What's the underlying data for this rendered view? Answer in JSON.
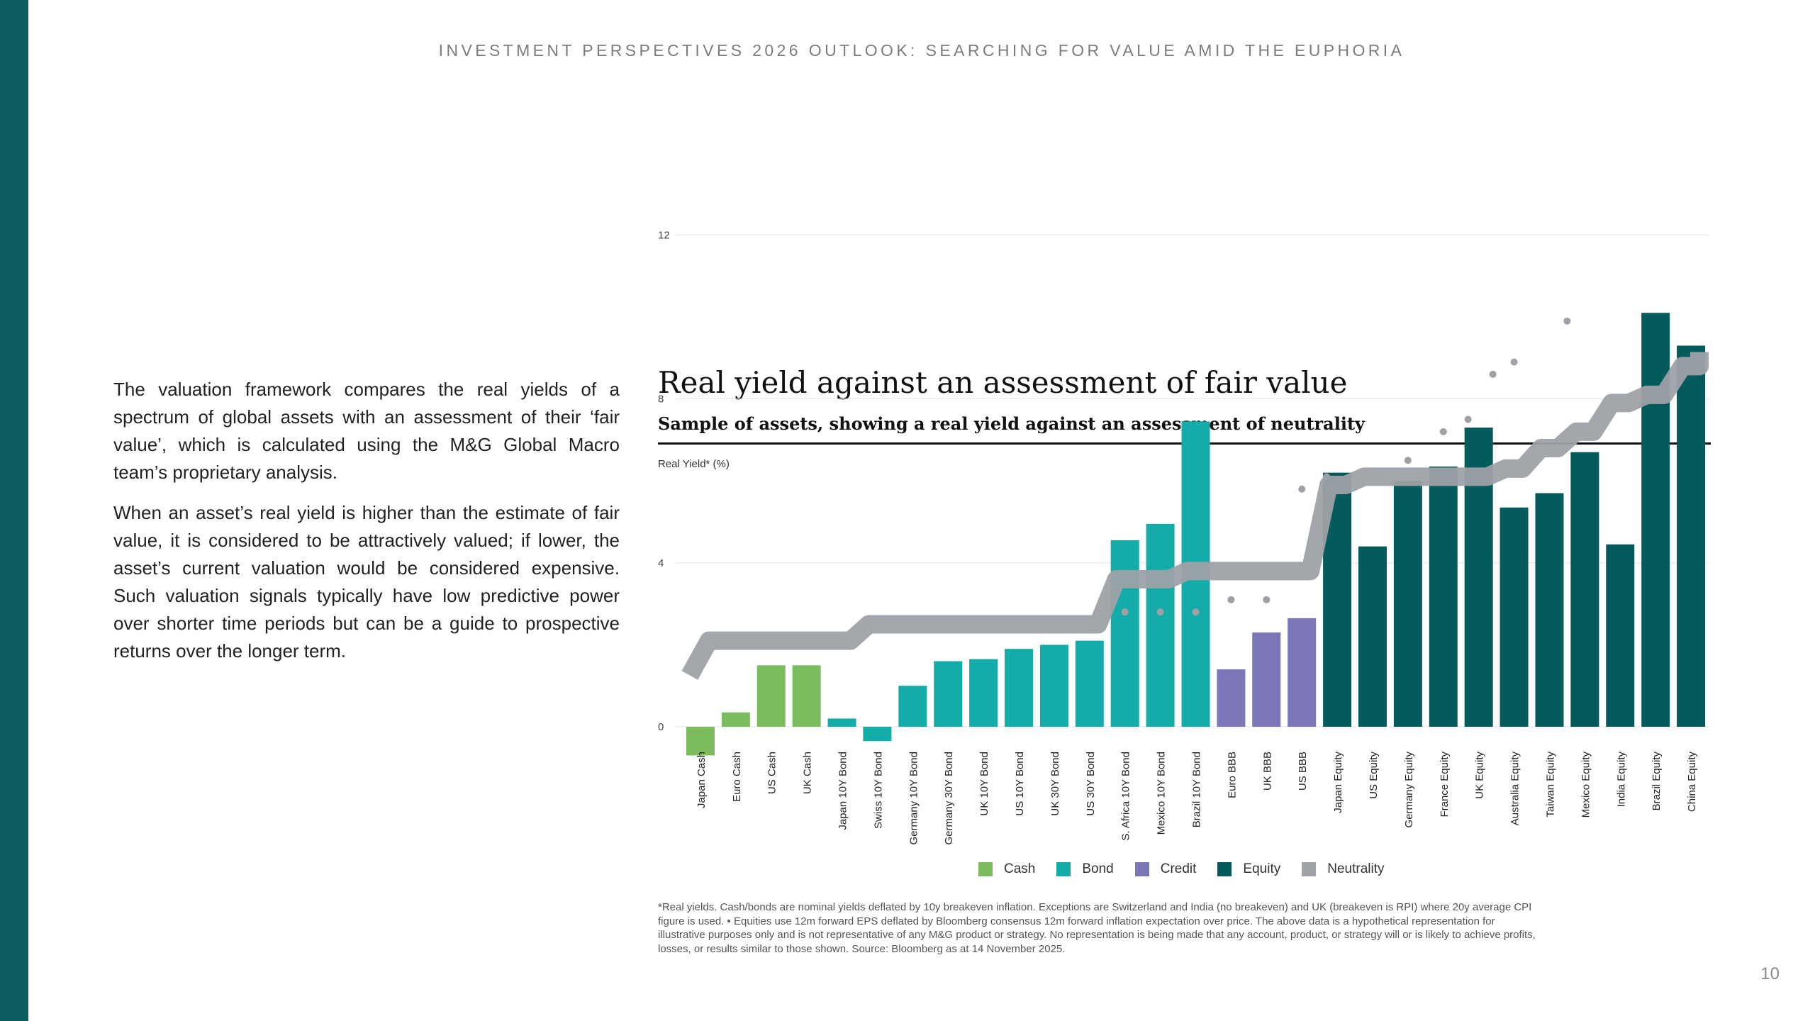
{
  "header": {
    "title": "INVESTMENT PERSPECTIVES 2026 OUTLOOK: SEARCHING FOR VALUE AMID THE EUPHORIA"
  },
  "intro": {
    "p1": "The valuation framework compares the real yields of a spectrum of global assets with an assessment of their ‘fair value’, which is calculated using the M&G Global Macro team’s proprietary analysis.",
    "p2": "When an asset’s real yield is higher than the estimate of fair value, it is considered to be attractively valued; if lower, the asset’s current valuation would be considered expensive. Such valuation signals typically have low predictive power over shorter time periods but can be a guide to prospective returns over the longer term."
  },
  "colors": {
    "Cash": "#7cbb5e",
    "Bond": "#13aca9",
    "Credit": "#7a76b8",
    "Equity": "#055b5c",
    "Neutrality": "#9ea1a5"
  },
  "chart_data": {
    "type": "bar",
    "title": "Real yield against an assessment of fair value",
    "subtitle": "Sample of assets, showing a real yield against an assessment of neutrality",
    "ylabel": "Real Yield* (%)",
    "ylim": [
      0,
      12
    ],
    "yticks": [
      0,
      4,
      8,
      12
    ],
    "categories": [
      "Japan Cash",
      "Euro Cash",
      "US Cash",
      "UK Cash",
      "Japan 10Y Bond",
      "Swiss 10Y Bond",
      "Germany 10Y Bond",
      "Germany 30Y Bond",
      "UK 10Y Bond",
      "US 10Y Bond",
      "UK 30Y Bond",
      "US 30Y Bond",
      "S. Africa 10Y Bond",
      "Mexico 10Y Bond",
      "Brazil 10Y Bond",
      "Euro BBB",
      "UK BBB",
      "US BBB",
      "Japan Equity",
      "US Equity",
      "Germany Equity",
      "France Equity",
      "UK Equity",
      "Australia Equity",
      "Taiwan Equity",
      "Mexico Equity",
      "India Equity",
      "Brazil Equity",
      "China Equity"
    ],
    "groups": [
      "Cash",
      "Cash",
      "Cash",
      "Cash",
      "Bond",
      "Bond",
      "Bond",
      "Bond",
      "Bond",
      "Bond",
      "Bond",
      "Bond",
      "Bond",
      "Bond",
      "Bond",
      "Credit",
      "Credit",
      "Credit",
      "Equity",
      "Equity",
      "Equity",
      "Equity",
      "Equity",
      "Equity",
      "Equity",
      "Equity",
      "Equity",
      "Equity",
      "Equity"
    ],
    "values": [
      -0.7,
      0.35,
      1.5,
      1.5,
      0.2,
      -0.35,
      1.0,
      1.6,
      1.65,
      1.9,
      2.0,
      2.1,
      4.55,
      4.95,
      7.45,
      1.4,
      2.3,
      2.65,
      6.2,
      4.4,
      6.0,
      6.35,
      7.3,
      5.35,
      5.7,
      6.7,
      4.45,
      10.1,
      9.3
    ],
    "neutrality": [
      1.6,
      2.1,
      2.1,
      2.1,
      2.1,
      2.5,
      2.5,
      2.5,
      2.5,
      2.5,
      2.5,
      2.5,
      3.6,
      3.6,
      3.8,
      3.8,
      3.8,
      3.8,
      5.9,
      6.1,
      6.1,
      6.1,
      6.1,
      6.3,
      6.8,
      7.2,
      7.9,
      8.1,
      8.8
    ],
    "dots": [
      {
        "i": 12,
        "v": 2.8
      },
      {
        "i": 13,
        "v": 2.8
      },
      {
        "i": 14,
        "v": 2.8
      },
      {
        "i": 15,
        "v": 3.1
      },
      {
        "i": 16,
        "v": 3.1
      },
      {
        "i": 17,
        "v": 5.8
      },
      {
        "i": 17.7,
        "v": 6.1
      },
      {
        "i": 20,
        "v": 6.5
      },
      {
        "i": 21,
        "v": 7.2
      },
      {
        "i": 21.7,
        "v": 7.5
      },
      {
        "i": 22.4,
        "v": 8.6
      },
      {
        "i": 23,
        "v": 8.9
      },
      {
        "i": 24.5,
        "v": 9.9
      }
    ],
    "legend": [
      "Cash",
      "Bond",
      "Credit",
      "Equity",
      "Neutrality"
    ]
  },
  "footnote": "*Real yields. Cash/bonds are nominal yields deflated by 10y breakeven inflation. Exceptions are Switzerland and India (no breakeven) and UK (breakeven is RPI) where 20y average CPI figure is used. • Equities use 12m forward EPS deflated by Bloomberg consensus 12m forward inflation expectation over price. The above data is a hypothetical representation for illustrative purposes only and is not representative of any M&G product or strategy. No representation is being made that any account, product, or strategy will or is likely to achieve profits, losses, or results similar to those shown. Source: Bloomberg as at 14 November 2025.",
  "page_number": "10"
}
